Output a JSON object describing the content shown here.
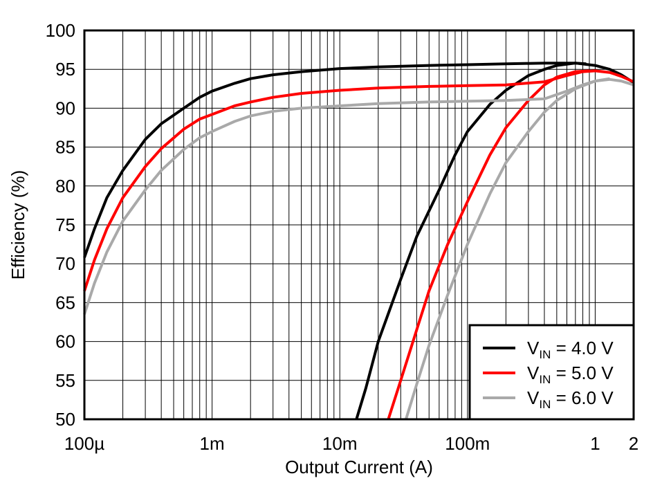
{
  "chart_data": {
    "type": "line",
    "title": "",
    "xlabel": "Output Current (A)",
    "ylabel": "Efficiency (%)",
    "x_scale": "log",
    "xlim": [
      0.0001,
      2
    ],
    "ylim": [
      50,
      100
    ],
    "x_ticks": [
      {
        "value": 0.0001,
        "label": "100µ"
      },
      {
        "value": 0.001,
        "label": "1m"
      },
      {
        "value": 0.01,
        "label": "10m"
      },
      {
        "value": 0.1,
        "label": "100m"
      },
      {
        "value": 1,
        "label": "1"
      },
      {
        "value": 2,
        "label": "2"
      }
    ],
    "y_ticks": [
      50,
      55,
      60,
      65,
      70,
      75,
      80,
      85,
      90,
      95,
      100
    ],
    "grid": true,
    "legend_position": "bottom-right",
    "series": [
      {
        "name_prefix": "V",
        "name_subscript": "IN",
        "name_suffix": " = 4.0 V",
        "color": "#000000",
        "curves": [
          [
            [
              0.0001,
              70.8
            ],
            [
              0.00012,
              74.5
            ],
            [
              0.00015,
              78.5
            ],
            [
              0.0002,
              82.0
            ],
            [
              0.0003,
              86.0
            ],
            [
              0.0004,
              88.0
            ],
            [
              0.0006,
              90.0
            ],
            [
              0.0008,
              91.4
            ],
            [
              0.001,
              92.2
            ],
            [
              0.0015,
              93.2
            ],
            [
              0.002,
              93.8
            ],
            [
              0.003,
              94.3
            ],
            [
              0.005,
              94.7
            ],
            [
              0.01,
              95.1
            ],
            [
              0.02,
              95.3
            ],
            [
              0.05,
              95.5
            ],
            [
              0.1,
              95.6
            ],
            [
              0.2,
              95.7
            ],
            [
              0.4,
              95.8
            ],
            [
              0.7,
              95.8
            ],
            [
              1,
              95.5
            ],
            [
              1.3,
              95.0
            ],
            [
              1.6,
              94.3
            ],
            [
              2,
              93.3
            ]
          ],
          [
            [
              0.0135,
              50.0
            ],
            [
              0.016,
              54.0
            ],
            [
              0.02,
              60.0
            ],
            [
              0.03,
              68.0
            ],
            [
              0.04,
              73.5
            ],
            [
              0.06,
              79.5
            ],
            [
              0.08,
              84.0
            ],
            [
              0.1,
              87.0
            ],
            [
              0.15,
              90.5
            ],
            [
              0.2,
              92.3
            ],
            [
              0.3,
              94.2
            ],
            [
              0.4,
              95.0
            ],
            [
              0.5,
              95.5
            ],
            [
              0.7,
              95.8
            ],
            [
              0.85,
              95.7
            ]
          ]
        ]
      },
      {
        "name_prefix": "V",
        "name_subscript": "IN",
        "name_suffix": " = 5.0 V",
        "color": "#ff0000",
        "curves": [
          [
            [
              0.0001,
              66.5
            ],
            [
              0.00012,
              70.5
            ],
            [
              0.00015,
              74.5
            ],
            [
              0.0002,
              78.5
            ],
            [
              0.0003,
              82.5
            ],
            [
              0.0004,
              84.8
            ],
            [
              0.0006,
              87.3
            ],
            [
              0.0008,
              88.6
            ],
            [
              0.001,
              89.2
            ],
            [
              0.0015,
              90.3
            ],
            [
              0.002,
              90.8
            ],
            [
              0.003,
              91.4
            ],
            [
              0.005,
              91.9
            ],
            [
              0.01,
              92.3
            ],
            [
              0.02,
              92.6
            ],
            [
              0.05,
              92.8
            ],
            [
              0.1,
              92.9
            ],
            [
              0.2,
              93.0
            ],
            [
              0.4,
              93.4
            ],
            [
              0.6,
              94.2
            ],
            [
              0.8,
              94.7
            ],
            [
              1,
              94.8
            ],
            [
              1.3,
              94.6
            ],
            [
              1.6,
              94.1
            ],
            [
              2,
              93.4
            ]
          ],
          [
            [
              0.024,
              50.0
            ],
            [
              0.03,
              55.0
            ],
            [
              0.04,
              61.5
            ],
            [
              0.05,
              66.5
            ],
            [
              0.07,
              72.5
            ],
            [
              0.1,
              78.0
            ],
            [
              0.15,
              84.0
            ],
            [
              0.2,
              87.5
            ],
            [
              0.3,
              91.0
            ],
            [
              0.4,
              93.0
            ],
            [
              0.5,
              94.0
            ],
            [
              0.7,
              94.7
            ],
            [
              0.9,
              94.8
            ]
          ]
        ]
      },
      {
        "name_prefix": "V",
        "name_subscript": "IN",
        "name_suffix": " = 6.0 V",
        "color": "#a9a9a9",
        "curves": [
          [
            [
              0.0001,
              63.5
            ],
            [
              0.00012,
              67.5
            ],
            [
              0.00015,
              71.5
            ],
            [
              0.0002,
              75.5
            ],
            [
              0.0003,
              79.5
            ],
            [
              0.0004,
              82.0
            ],
            [
              0.0006,
              84.7
            ],
            [
              0.0008,
              86.2
            ],
            [
              0.001,
              87.0
            ],
            [
              0.0015,
              88.3
            ],
            [
              0.002,
              89.0
            ],
            [
              0.003,
              89.6
            ],
            [
              0.005,
              90.0
            ],
            [
              0.01,
              90.3
            ],
            [
              0.02,
              90.6
            ],
            [
              0.05,
              90.8
            ],
            [
              0.1,
              90.9
            ],
            [
              0.2,
              91.0
            ],
            [
              0.4,
              91.2
            ],
            [
              0.6,
              92.2
            ],
            [
              0.8,
              93.0
            ],
            [
              1,
              93.5
            ],
            [
              1.3,
              93.7
            ],
            [
              1.6,
              93.5
            ],
            [
              2,
              93.0
            ]
          ],
          [
            [
              0.033,
              50.0
            ],
            [
              0.04,
              54.5
            ],
            [
              0.05,
              59.5
            ],
            [
              0.07,
              66.0
            ],
            [
              0.1,
              72.5
            ],
            [
              0.15,
              79.0
            ],
            [
              0.2,
              83.0
            ],
            [
              0.3,
              87.0
            ],
            [
              0.4,
              89.5
            ],
            [
              0.5,
              91.0
            ],
            [
              0.7,
              92.5
            ],
            [
              1,
              93.5
            ],
            [
              1.3,
              93.8
            ]
          ]
        ]
      }
    ]
  }
}
